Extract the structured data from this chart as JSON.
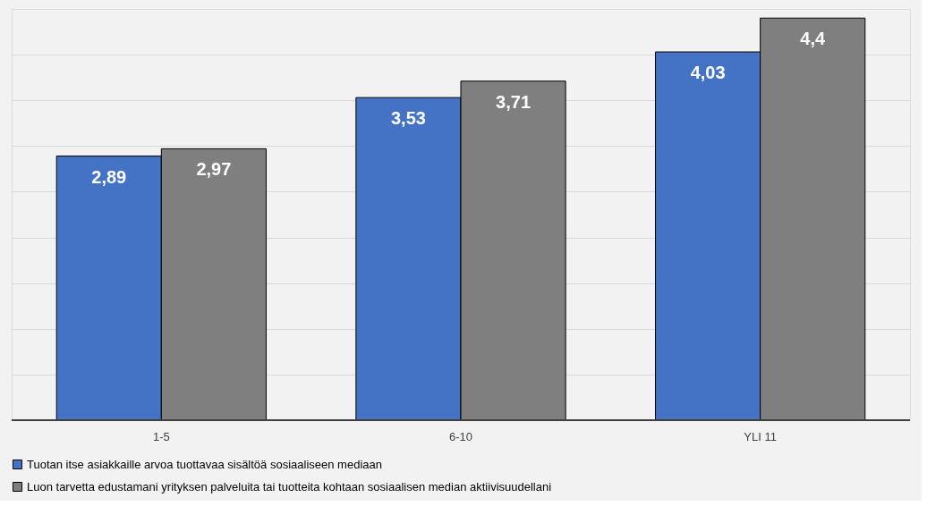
{
  "chart_data": {
    "type": "bar",
    "categories": [
      "1-5",
      "6-10",
      "YLI 11"
    ],
    "series": [
      {
        "name": "Tuotan itse asiakkaille arvoa tuottavaa sisältöä sosiaaliseen mediaan",
        "color": "#4472c4",
        "values": [
          2.89,
          3.53,
          4.03
        ],
        "value_labels": [
          "2,89",
          "3,53",
          "4,03"
        ]
      },
      {
        "name": "Luon tarvetta edustamani yrityksen palveluita tai tuotteita kohtaan sosiaalisen median aktiivisuudellani",
        "color": "#7f7f7f",
        "values": [
          2.97,
          3.71,
          4.4
        ],
        "value_labels": [
          "2,97",
          "3,71",
          "4,4"
        ]
      }
    ],
    "grid": "y",
    "legend": "bottom",
    "tick_labels": "x"
  }
}
